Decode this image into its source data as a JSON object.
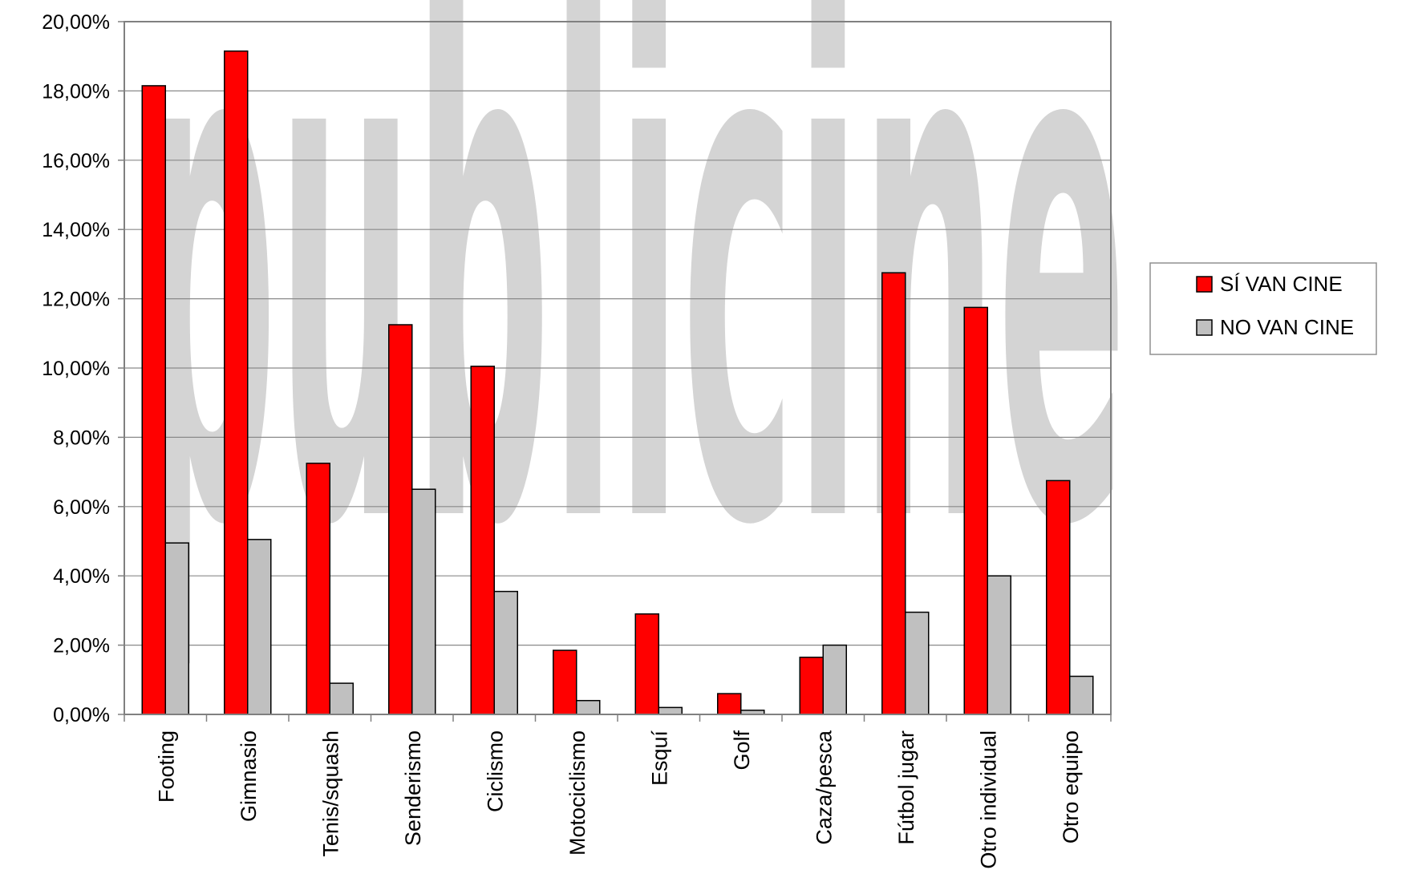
{
  "chart_data": {
    "type": "bar",
    "title": "",
    "xlabel": "",
    "ylabel": "",
    "ylim": [
      0,
      20
    ],
    "yticks": [
      "0,00%",
      "2,00%",
      "4,00%",
      "6,00%",
      "8,00%",
      "10,00%",
      "12,00%",
      "14,00%",
      "16,00%",
      "18,00%",
      "20,00%"
    ],
    "grid": true,
    "legend_position": "right",
    "categories": [
      "Footing",
      "Gimnasio",
      "Tenis/squash",
      "Senderismo",
      "Ciclismo",
      "Motociclismo",
      "Esquí",
      "Golf",
      "Caza/pesca",
      "Fútbol jugar",
      "Otro individual",
      "Otro equipo"
    ],
    "series": [
      {
        "name": "SÍ VAN CINE",
        "color": "#ff0000",
        "values": [
          18.15,
          19.15,
          7.25,
          11.25,
          10.05,
          1.85,
          2.9,
          0.6,
          1.65,
          12.75,
          11.75,
          6.75
        ]
      },
      {
        "name": "NO VAN CINE",
        "color": "#c0c0c0",
        "values": [
          4.95,
          5.05,
          0.9,
          6.5,
          3.55,
          0.4,
          0.2,
          0.12,
          2.0,
          2.95,
          4.0,
          1.1
        ]
      }
    ],
    "watermark": "publicine",
    "watermark_color": "#d4d4d4"
  }
}
